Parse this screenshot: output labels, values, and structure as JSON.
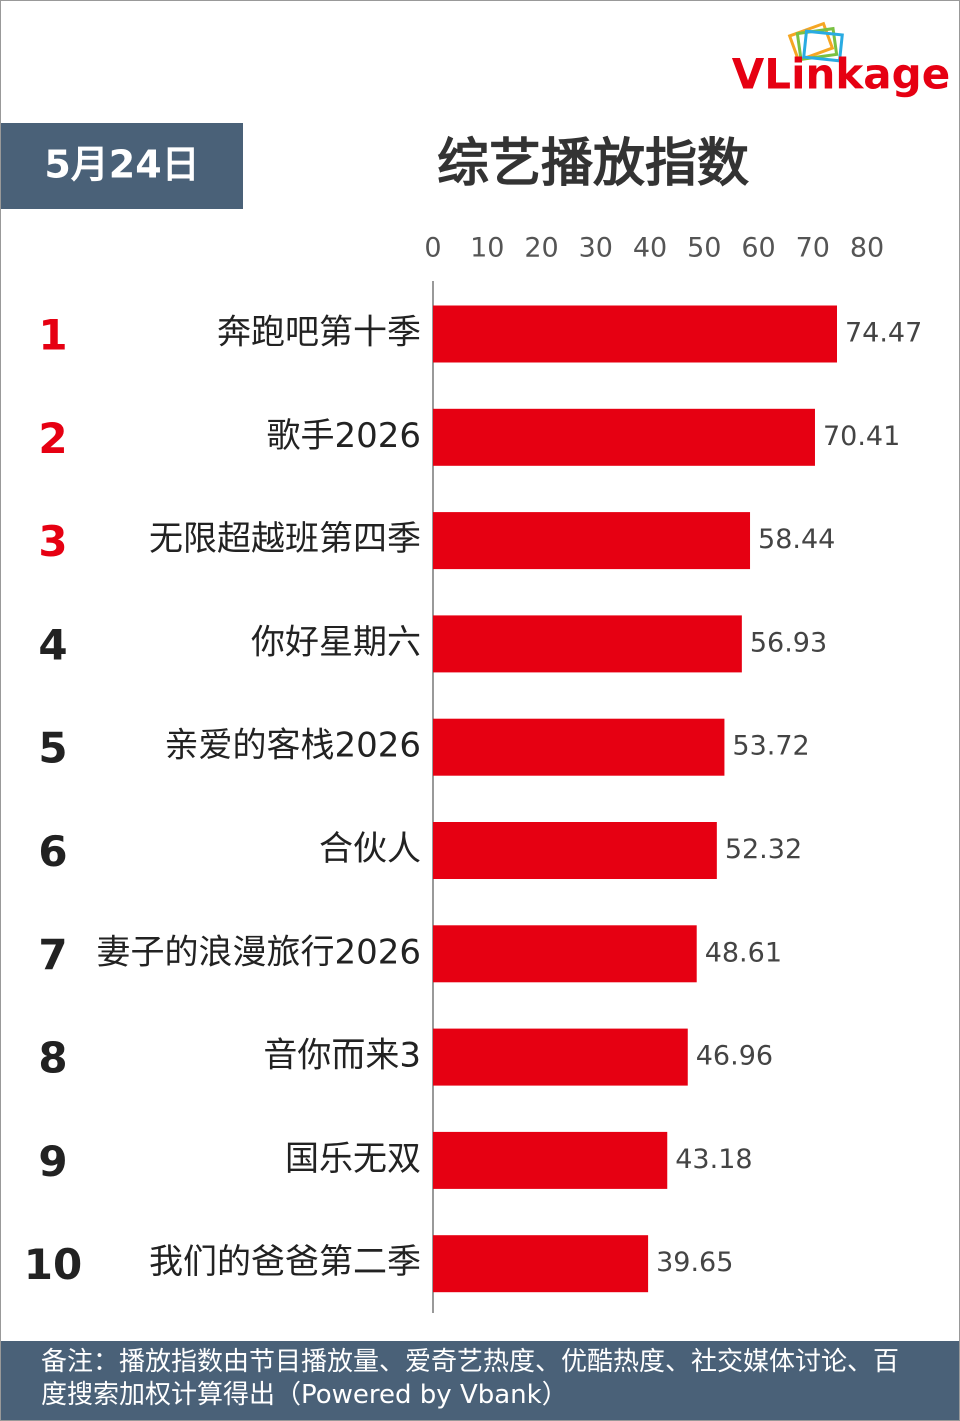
{
  "logo": "VLinkage",
  "chart_data": {
    "type": "bar",
    "orientation": "horizontal",
    "date": "5月24日",
    "title": "综艺播放指数",
    "ranks": [
      "1",
      "2",
      "3",
      "4",
      "5",
      "6",
      "7",
      "8",
      "9",
      "10"
    ],
    "rank_colors": [
      "#e60012",
      "#e60012",
      "#e60012",
      "#222222",
      "#222222",
      "#222222",
      "#222222",
      "#222222",
      "#222222",
      "#222222"
    ],
    "categories": [
      "奔跑吧第十季",
      "歌手2026",
      "无限超越班第四季",
      "你好星期六",
      "亲爱的客栈2026",
      "合伙人",
      "妻子的浪漫旅行2026",
      "音你而来3",
      "国乐无双",
      "我们的爸爸第二季"
    ],
    "values": [
      74.47,
      70.41,
      58.44,
      56.93,
      53.72,
      52.32,
      48.61,
      46.96,
      43.18,
      39.65
    ],
    "color": "#e60012",
    "xlim": [
      0,
      80
    ],
    "xticks": [
      0,
      10,
      20,
      30,
      40,
      50,
      60,
      70,
      80
    ],
    "note": "备注：播放指数由节目播放量、爱奇艺热度、优酷热度、社交媒体讨论、百度搜索加权计算得出（Powered by Vbank）"
  }
}
